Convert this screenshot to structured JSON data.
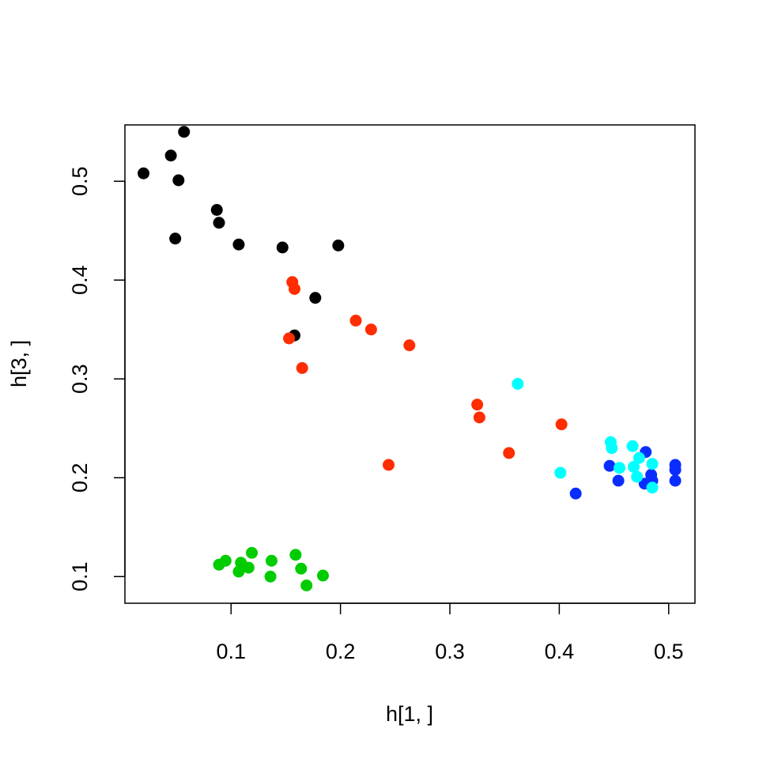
{
  "chart_data": {
    "type": "scatter",
    "title": "",
    "xlabel": "h[1, ]",
    "ylabel": "h[3, ]",
    "xlim": [
      0.003,
      0.524
    ],
    "ylim": [
      0.073,
      0.557
    ],
    "x_ticks": [
      {
        "value": 0.1,
        "label": "0.1"
      },
      {
        "value": 0.2,
        "label": "0.2"
      },
      {
        "value": 0.3,
        "label": "0.3"
      },
      {
        "value": 0.4,
        "label": "0.4"
      },
      {
        "value": 0.5,
        "label": "0.5"
      }
    ],
    "y_ticks": [
      {
        "value": 0.1,
        "label": "0.1"
      },
      {
        "value": 0.2,
        "label": "0.2"
      },
      {
        "value": 0.3,
        "label": "0.3"
      },
      {
        "value": 0.4,
        "label": "0.4"
      },
      {
        "value": 0.5,
        "label": "0.5"
      }
    ],
    "grid": false,
    "legend": "none",
    "series": [
      {
        "color": "#000000",
        "points": [
          [
            0.057,
            0.55
          ],
          [
            0.045,
            0.526
          ],
          [
            0.02,
            0.508
          ],
          [
            0.052,
            0.501
          ],
          [
            0.087,
            0.471
          ],
          [
            0.089,
            0.458
          ],
          [
            0.049,
            0.442
          ],
          [
            0.107,
            0.436
          ],
          [
            0.147,
            0.433
          ],
          [
            0.198,
            0.435
          ],
          [
            0.177,
            0.382
          ],
          [
            0.158,
            0.344
          ]
        ]
      },
      {
        "color": "#ff2d00",
        "points": [
          [
            0.156,
            0.398
          ],
          [
            0.158,
            0.391
          ],
          [
            0.214,
            0.359
          ],
          [
            0.228,
            0.35
          ],
          [
            0.153,
            0.341
          ],
          [
            0.263,
            0.334
          ],
          [
            0.165,
            0.311
          ],
          [
            0.325,
            0.274
          ],
          [
            0.327,
            0.261
          ],
          [
            0.402,
            0.254
          ],
          [
            0.354,
            0.225
          ],
          [
            0.244,
            0.213
          ]
        ]
      },
      {
        "color": "#00cc00",
        "points": [
          [
            0.119,
            0.124
          ],
          [
            0.159,
            0.122
          ],
          [
            0.095,
            0.116
          ],
          [
            0.137,
            0.116
          ],
          [
            0.109,
            0.114
          ],
          [
            0.089,
            0.112
          ],
          [
            0.116,
            0.109
          ],
          [
            0.164,
            0.108
          ],
          [
            0.107,
            0.105
          ],
          [
            0.184,
            0.101
          ],
          [
            0.136,
            0.1
          ],
          [
            0.169,
            0.091
          ]
        ]
      },
      {
        "color": "#0a2dff",
        "points": [
          [
            0.479,
            0.226
          ],
          [
            0.446,
            0.212
          ],
          [
            0.506,
            0.213
          ],
          [
            0.506,
            0.208
          ],
          [
            0.484,
            0.203
          ],
          [
            0.454,
            0.197
          ],
          [
            0.485,
            0.197
          ],
          [
            0.506,
            0.197
          ],
          [
            0.478,
            0.194
          ],
          [
            0.415,
            0.184
          ]
        ]
      },
      {
        "color": "#00ffff",
        "points": [
          [
            0.362,
            0.295
          ],
          [
            0.447,
            0.236
          ],
          [
            0.467,
            0.232
          ],
          [
            0.448,
            0.23
          ],
          [
            0.473,
            0.22
          ],
          [
            0.485,
            0.214
          ],
          [
            0.468,
            0.211
          ],
          [
            0.455,
            0.21
          ],
          [
            0.401,
            0.205
          ],
          [
            0.471,
            0.201
          ],
          [
            0.485,
            0.19
          ]
        ]
      }
    ]
  }
}
